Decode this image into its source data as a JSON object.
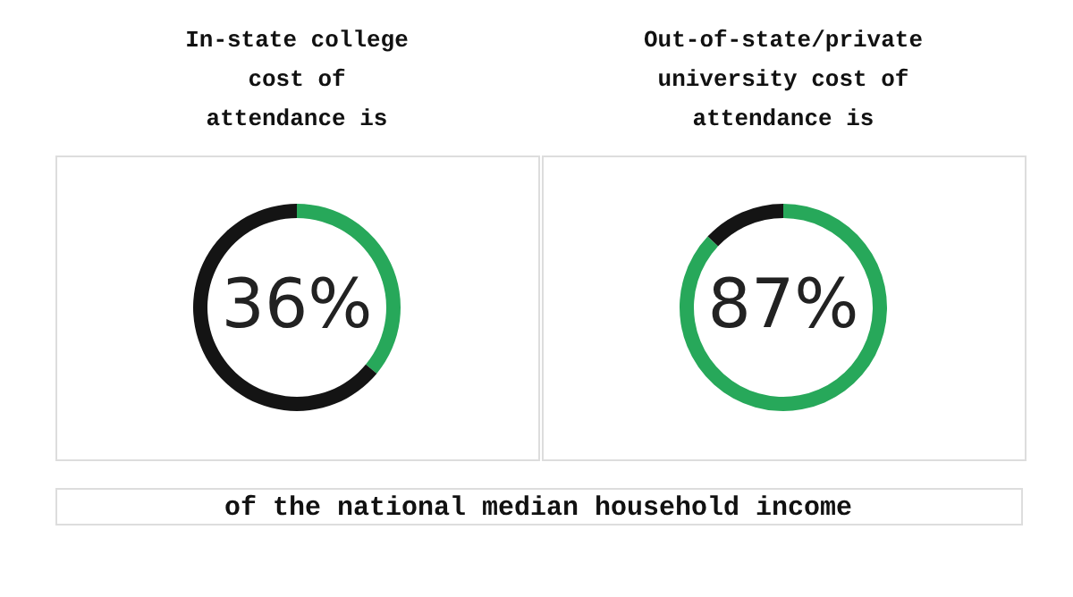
{
  "chart_data": [
    {
      "type": "donut",
      "title": "In-state college\ncost of\nattendance is",
      "categories": [
        null,
        null
      ],
      "values": [
        36,
        64
      ],
      "colors": [
        "#27a85a",
        "#141414"
      ],
      "value_labels": [
        "36%",
        null
      ]
    },
    {
      "type": "donut",
      "title": "Out-of-state/private\nuniversity cost of\nattendance is",
      "categories": [
        null,
        null
      ],
      "values": [
        87,
        13
      ],
      "colors": [
        "#27a85a",
        "#141414"
      ],
      "value_labels": [
        "87%",
        null
      ],
      "annotations": [
        "of the national median household income"
      ]
    }
  ]
}
